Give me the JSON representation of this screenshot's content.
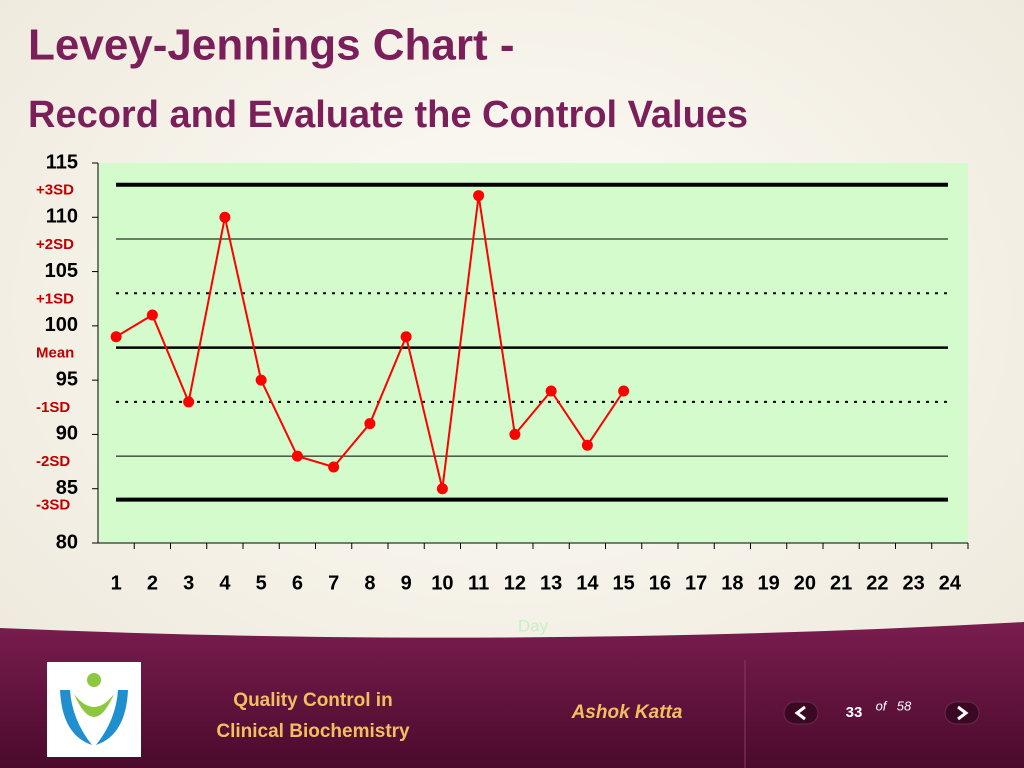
{
  "title": "Levey-Jennings Chart -",
  "subtitle": "Record and Evaluate the Control Values",
  "chart_data": {
    "type": "line",
    "x_label": "Day",
    "categories": [
      "1",
      "2",
      "3",
      "4",
      "5",
      "6",
      "7",
      "8",
      "9",
      "10",
      "11",
      "12",
      "13",
      "14",
      "15",
      "16",
      "17",
      "18",
      "19",
      "20",
      "21",
      "22",
      "23",
      "24"
    ],
    "values": [
      99,
      101,
      93,
      110,
      95,
      88,
      87,
      91,
      99,
      85,
      112,
      90,
      94,
      89,
      94,
      null,
      null,
      null,
      null,
      null,
      null,
      null,
      null,
      null
    ],
    "color": "#ff0000",
    "ylim": [
      80,
      115
    ],
    "yticks": [
      80,
      85,
      90,
      95,
      100,
      105,
      110,
      115
    ],
    "grid": false,
    "reference_lines": [
      {
        "label": "+3SD",
        "value": 113,
        "style": "thick"
      },
      {
        "label": "+2SD",
        "value": 108,
        "style": "thin"
      },
      {
        "label": "+1SD",
        "value": 103,
        "style": "dotted"
      },
      {
        "label": "Mean",
        "value": 98,
        "style": "medium"
      },
      {
        "label": "-1SD",
        "value": 93,
        "style": "dotted"
      },
      {
        "label": "-2SD",
        "value": 88,
        "style": "thin"
      },
      {
        "label": "-3SD",
        "value": 84,
        "style": "thick"
      }
    ]
  },
  "footer": {
    "course": [
      "Quality Control in",
      "Clinical Biochemistry"
    ],
    "author": "Ashok Katta",
    "page": 33,
    "of": "of",
    "total": 58
  }
}
